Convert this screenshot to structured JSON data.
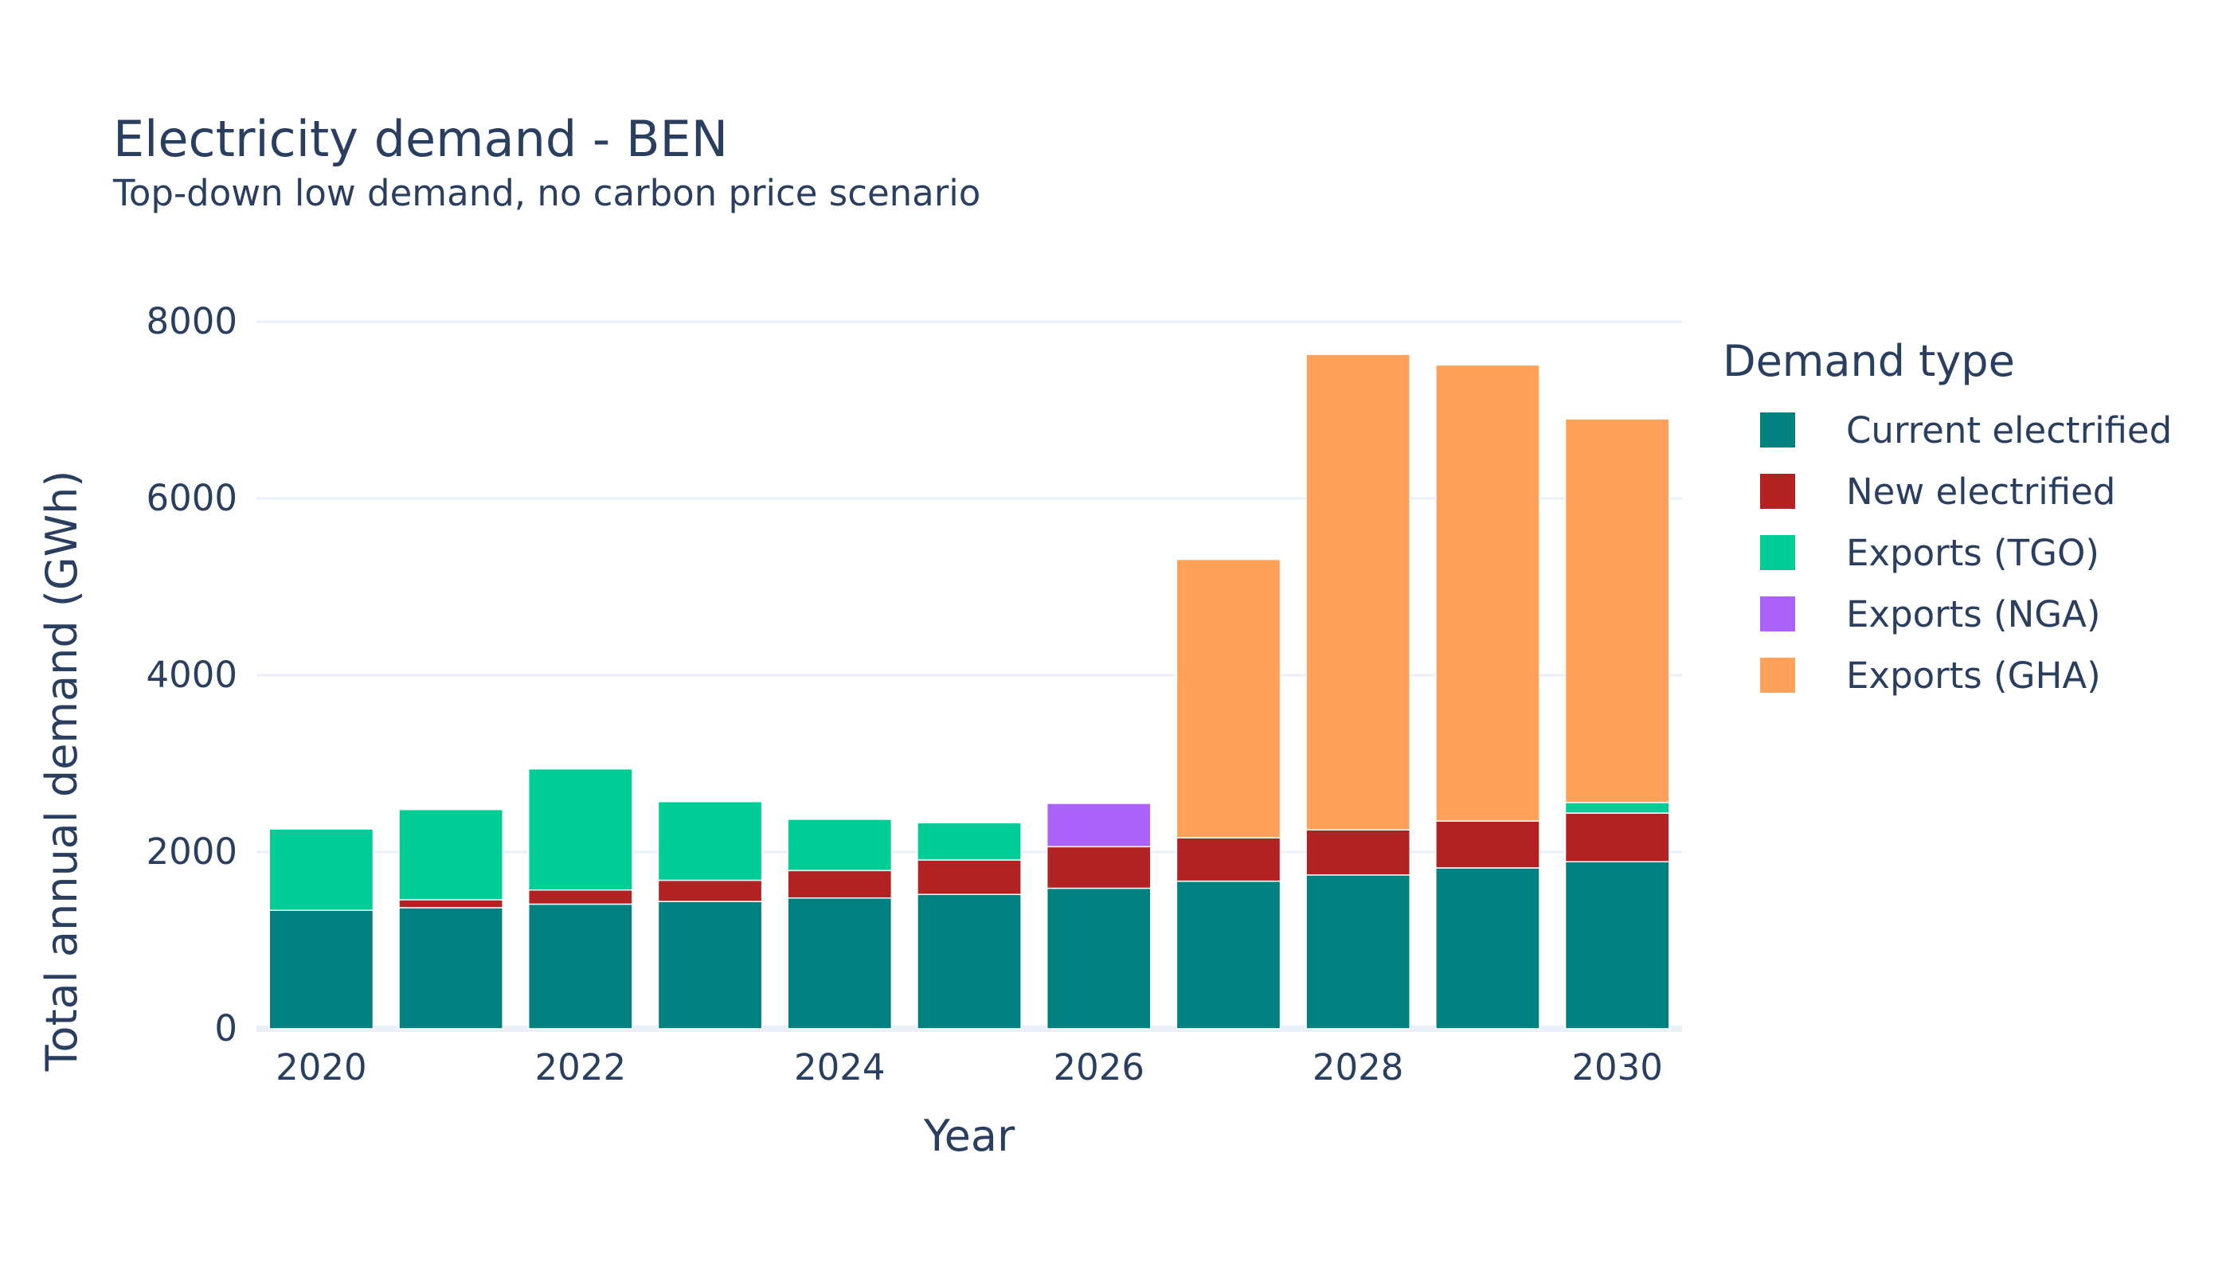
{
  "chart_data": {
    "type": "bar",
    "stacked": true,
    "title": "Electricity demand - BEN",
    "subtitle": "Top-down low demand, no carbon price scenario",
    "xlabel": "Year",
    "ylabel": "Total annual demand (GWh)",
    "ylim": [
      0,
      8000
    ],
    "yticks": [
      0,
      2000,
      4000,
      6000,
      8000
    ],
    "xticks": [
      2020,
      2022,
      2024,
      2026,
      2028,
      2030
    ],
    "grid": true,
    "legend_title": "Demand type",
    "legend_position": "right",
    "categories": [
      2020,
      2021,
      2022,
      2023,
      2024,
      2025,
      2026,
      2027,
      2028,
      2029,
      2030
    ],
    "series": [
      {
        "name": "Current electrified",
        "color": "#00807f",
        "values": [
          1340,
          1370,
          1410,
          1440,
          1480,
          1520,
          1590,
          1670,
          1740,
          1820,
          1890
        ]
      },
      {
        "name": "New electrified",
        "color": "#b22222",
        "values": [
          0,
          90,
          160,
          240,
          310,
          390,
          470,
          490,
          510,
          530,
          550
        ]
      },
      {
        "name": "Exports (TGO)",
        "color": "#00cc96",
        "values": [
          920,
          1020,
          1370,
          890,
          580,
          420,
          0,
          0,
          0,
          0,
          120
        ]
      },
      {
        "name": "Exports (NGA)",
        "color": "#ab63fa",
        "values": [
          0,
          0,
          0,
          0,
          0,
          0,
          490,
          0,
          0,
          0,
          0
        ]
      },
      {
        "name": "Exports (GHA)",
        "color": "#ffa15a",
        "values": [
          0,
          0,
          0,
          0,
          0,
          0,
          0,
          3150,
          5380,
          5160,
          4340
        ]
      }
    ]
  }
}
